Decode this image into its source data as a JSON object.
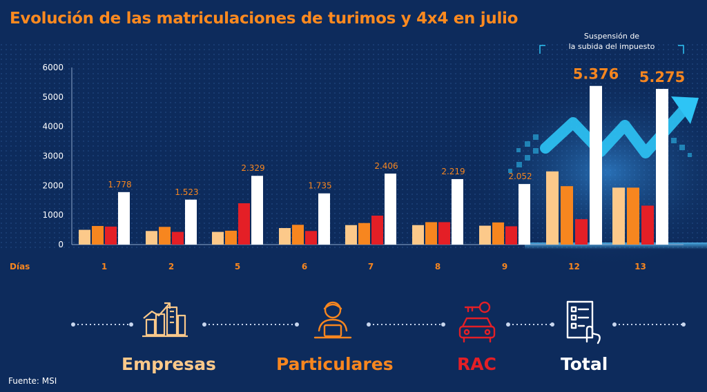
{
  "title": "Evolución de las matriculaciones de turimos y 4x4 en julio",
  "source": "Fuente: MSI",
  "colors": {
    "background": "#0d2b5c",
    "empresas": "#fcc98a",
    "particulares": "#f7861f",
    "rac": "#e41f26",
    "total": "#ffffff",
    "title": "#ff8a1f",
    "accent": "#2ec4f5"
  },
  "legend": [
    {
      "label": "Empresas",
      "icon": "buildings-growth-icon",
      "color": "#fcc98a"
    },
    {
      "label": "Particulares",
      "icon": "person-laptop-icon",
      "color": "#f7861f"
    },
    {
      "label": "RAC",
      "icon": "car-key-icon",
      "color": "#e41f26"
    },
    {
      "label": "Total",
      "icon": "checklist-hand-icon",
      "color": "#ffffff"
    }
  ],
  "annotation": {
    "line1": "Suspensión de",
    "line2": "la subida del impuesto"
  },
  "chart_data": {
    "type": "bar",
    "xlabel": "Días",
    "categories": [
      "1",
      "2",
      "5",
      "6",
      "7",
      "8",
      "9",
      "12",
      "13"
    ],
    "yticks": [
      "0",
      "1000",
      "2000",
      "3000",
      "4000",
      "5000",
      "6000"
    ],
    "ylim": [
      0,
      6000
    ],
    "series": [
      {
        "name": "Empresas",
        "values": [
          500,
          460,
          430,
          560,
          660,
          660,
          640,
          2480,
          1930
        ]
      },
      {
        "name": "Particulares",
        "values": [
          630,
          600,
          470,
          670,
          730,
          760,
          750,
          1980,
          1930
        ]
      },
      {
        "name": "RAC",
        "values": [
          610,
          430,
          1400,
          460,
          980,
          760,
          620,
          860,
          1320
        ]
      },
      {
        "name": "Total",
        "values": [
          1778,
          1523,
          2329,
          1735,
          2406,
          2219,
          2052,
          5376,
          5275
        ]
      }
    ],
    "data_labels": [
      "1.778",
      "1.523",
      "2.329",
      "1.735",
      "2.406",
      "2.219",
      "2.052",
      "5.376",
      "5.275"
    ]
  }
}
